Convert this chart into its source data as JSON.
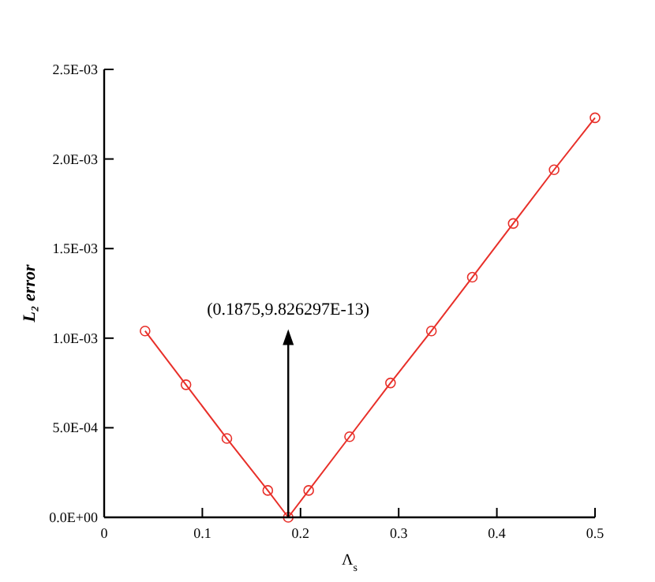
{
  "chart_data": {
    "type": "line",
    "xlabel": "Λ$_{s}$",
    "ylabel": "L₂ error",
    "x": [
      0.041667,
      0.083333,
      0.125,
      0.166667,
      0.1875,
      0.208333,
      0.25,
      0.291667,
      0.333333,
      0.375,
      0.416667,
      0.458333,
      0.5
    ],
    "series": [
      {
        "color": "#e8302a",
        "values": [
          0.00104,
          0.00074,
          0.00044,
          0.00015,
          0,
          0.00015,
          0.00045,
          0.00075,
          0.00104,
          0.00134,
          0.00164,
          0.00194,
          0.00223
        ]
      }
    ],
    "marker": "circle",
    "line_style": "solid",
    "xlim": [
      0,
      0.5
    ],
    "xticks": [
      0,
      0.1,
      0.2,
      0.3,
      0.4,
      0.5
    ],
    "ylim": [
      0,
      0.0025
    ],
    "yticks": [
      {
        "value": 0,
        "label": "0.0E+00"
      },
      {
        "value": 0.0005,
        "label": "5.0E-04"
      },
      {
        "value": 0.001,
        "label": "1.0E-03"
      },
      {
        "value": 0.0015,
        "label": "1.5E-03"
      },
      {
        "value": 0.002,
        "label": "2.0E-03"
      },
      {
        "value": 0.0025,
        "label": "2.5E-03"
      }
    ],
    "annotations": [
      {
        "text": "(0.1875,9.826297E-13)",
        "x": 0.1875,
        "y": 9.826297e-13
      }
    ]
  }
}
